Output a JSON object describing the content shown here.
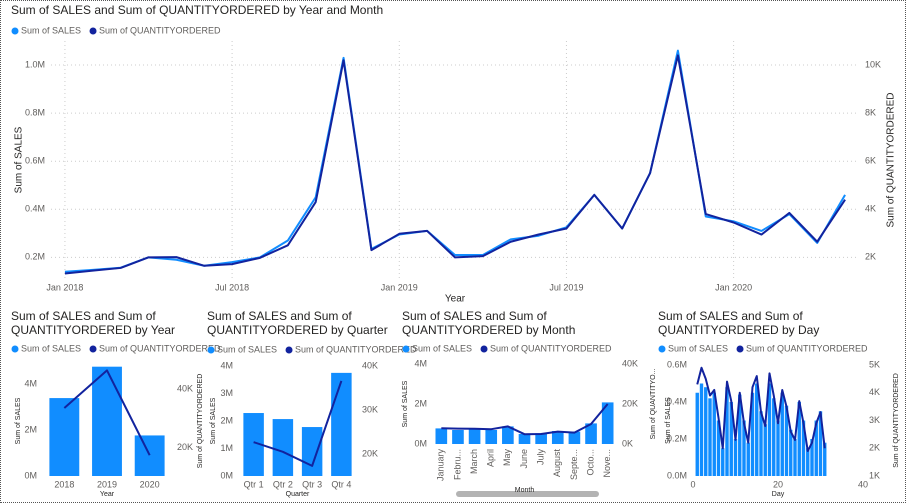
{
  "chart_data": [
    {
      "type": "line",
      "title": "Sum of SALES and Sum of QUANTITYORDERED by Year and Month",
      "x": [
        "2018-01",
        "2018-02",
        "2018-03",
        "2018-04",
        "2018-05",
        "2018-06",
        "2018-07",
        "2018-08",
        "2018-09",
        "2018-10",
        "2018-11",
        "2018-12",
        "2019-01",
        "2019-02",
        "2019-03",
        "2019-04",
        "2019-05",
        "2019-06",
        "2019-07",
        "2019-08",
        "2019-09",
        "2019-10",
        "2019-11",
        "2019-12",
        "2020-01",
        "2020-02",
        "2020-03",
        "2020-04",
        "2020-05"
      ],
      "xticks": [
        {
          "value": "2018-01",
          "label": "Jan 2018"
        },
        {
          "value": "2018-07",
          "label": "Jul 2018"
        },
        {
          "value": "2019-01",
          "label": "Jan 2019"
        },
        {
          "value": "2019-07",
          "label": "Jul 2019"
        },
        {
          "value": "2020-01",
          "label": "Jan 2020"
        }
      ],
      "x_label": "Year",
      "y_label": "Sum of SALES",
      "y2_label": "Sum of QUANTITYORDERED",
      "ylim": [
        110000,
        1100000
      ],
      "yticks": [
        {
          "value": 200000,
          "label": "0.2M"
        },
        {
          "value": 400000,
          "label": "0.4M"
        },
        {
          "value": 600000,
          "label": "0.6M"
        },
        {
          "value": 800000,
          "label": "0.8M"
        },
        {
          "value": 1000000,
          "label": "1.0M"
        }
      ],
      "y2lim": [
        1100,
        11000
      ],
      "y2ticks": [
        {
          "value": 2000,
          "label": "2K"
        },
        {
          "value": 4000,
          "label": "4K"
        },
        {
          "value": 6000,
          "label": "6K"
        },
        {
          "value": 8000,
          "label": "8K"
        },
        {
          "value": 10000,
          "label": "10K"
        }
      ],
      "grid": true,
      "series": [
        {
          "name": "Sum of SALES",
          "color": "#118dff",
          "values": [
            140000,
            148000,
            157000,
            200000,
            190000,
            165000,
            180000,
            200000,
            270000,
            450000,
            1030000,
            235000,
            295000,
            310000,
            210000,
            210000,
            275000,
            290000,
            325000,
            460000,
            320000,
            550000,
            1060000,
            370000,
            350000,
            310000,
            380000,
            260000,
            460000
          ]
        },
        {
          "name": "Sum of QUANTITYORDERED",
          "color": "#12239e",
          "axis": "y2",
          "values": [
            1330,
            1450,
            1560,
            2000,
            2010,
            1650,
            1720,
            1980,
            2500,
            4300,
            10200,
            2300,
            2980,
            3100,
            2000,
            2050,
            2650,
            2950,
            3200,
            4600,
            3200,
            5500,
            10400,
            3800,
            3450,
            2950,
            3850,
            2650,
            4400
          ]
        }
      ]
    },
    {
      "type": "bar",
      "title": "Sum of SALES and Sum of QUANTITYORDERED by Year",
      "categories": [
        "2018",
        "2019",
        "2020"
      ],
      "x_label": "Year",
      "y_label": "Sum of SALES",
      "y2_label": "Sum of QUANTITYORDERED",
      "ylim": [
        0,
        4800000
      ],
      "yticks": [
        {
          "value": 0,
          "label": "0M"
        },
        {
          "value": 2000000,
          "label": "2M"
        },
        {
          "value": 4000000,
          "label": "4M"
        }
      ],
      "y2lim": [
        10400,
        47900
      ],
      "y2ticks": [
        {
          "value": 20000,
          "label": "20K"
        },
        {
          "value": 40000,
          "label": "40K"
        }
      ],
      "series": [
        {
          "name": "Sum of SALES",
          "color": "#118dff",
          "values": [
            3400000,
            4770000,
            1770000
          ]
        },
        {
          "name": "Sum of QUANTITYORDERED",
          "color": "#12239e",
          "axis": "y2",
          "values": [
            33600,
            46400,
            17500
          ]
        }
      ]
    },
    {
      "type": "bar",
      "title": "Sum of SALES and Sum of QUANTITYORDERED by Quarter",
      "categories": [
        "Qtr 1",
        "Qtr 2",
        "Qtr 3",
        "Qtr 4"
      ],
      "x_label": "Quarter",
      "y_label": "Sum of SALES",
      "ylim": [
        0,
        4000000
      ],
      "yticks": [
        {
          "value": 0,
          "label": "0M"
        },
        {
          "value": 1000000,
          "label": "1M"
        },
        {
          "value": 2000000,
          "label": "2M"
        },
        {
          "value": 3000000,
          "label": "3M"
        },
        {
          "value": 4000000,
          "label": "4M"
        }
      ],
      "y2lim": [
        15000,
        40000
      ],
      "y2ticks": [
        {
          "value": 20000,
          "label": "20K"
        },
        {
          "value": 30000,
          "label": "30K"
        },
        {
          "value": 40000,
          "label": "40K"
        }
      ],
      "series": [
        {
          "name": "Sum of SALES",
          "color": "#118dff",
          "values": [
            2290000,
            2070000,
            1780000,
            3750000
          ]
        },
        {
          "name": "Sum of QUANTITYORDERED",
          "color": "#12239e",
          "axis": "y2",
          "values": [
            22700,
            20500,
            17300,
            36600
          ]
        }
      ]
    },
    {
      "type": "bar",
      "title": "Sum of SALES and Sum of QUANTITYORDERED by Month",
      "categories": [
        "January",
        "Febru...",
        "March",
        "April",
        "May",
        "June",
        "July",
        "August",
        "Septe...",
        "Octo...",
        "Nove..."
      ],
      "x_label": "Month",
      "y_label": "Sum of SALES",
      "y2_label": "Sum of QUANTITYO...",
      "ylim": [
        0,
        4000000
      ],
      "yticks": [
        {
          "value": 0,
          "label": "0M"
        },
        {
          "value": 2000000,
          "label": "2M"
        },
        {
          "value": 4000000,
          "label": "4M"
        }
      ],
      "y2lim": [
        0,
        40000
      ],
      "y2ticks": [
        {
          "value": 0,
          "label": "0K"
        },
        {
          "value": 20000,
          "label": "20K"
        },
        {
          "value": 40000,
          "label": "40K"
        }
      ],
      "series": [
        {
          "name": "Sum of SALES",
          "color": "#118dff",
          "values": [
            780000,
            700000,
            770000,
            700000,
            880000,
            500000,
            540000,
            650000,
            620000,
            1030000,
            2080000
          ]
        },
        {
          "name": "Sum of QUANTITYORDERED",
          "color": "#12239e",
          "axis": "y2",
          "values": [
            7900,
            7700,
            7600,
            7400,
            8800,
            4900,
            5000,
            6200,
            5700,
            10000,
            20000
          ]
        }
      ]
    },
    {
      "type": "bar",
      "title": "Sum of SALES and Sum of QUANTITYORDERED by Day",
      "x": [
        1,
        2,
        3,
        4,
        5,
        6,
        7,
        8,
        9,
        10,
        11,
        12,
        13,
        14,
        15,
        16,
        17,
        18,
        19,
        20,
        21,
        22,
        23,
        24,
        25,
        26,
        27,
        28,
        29,
        30,
        31
      ],
      "xlim": [
        0,
        40
      ],
      "xticks": [
        0,
        20,
        40
      ],
      "x_label": "Day",
      "y_label": "Sum of SALES",
      "y2_label": "Sum of QUANTITYORDERED",
      "ylim": [
        0,
        600000
      ],
      "yticks": [
        {
          "value": 0,
          "label": "0.0M"
        },
        {
          "value": 200000,
          "label": "0.2M"
        },
        {
          "value": 400000,
          "label": "0.4M"
        },
        {
          "value": 600000,
          "label": "0.6M"
        }
      ],
      "y2lim": [
        1000,
        5000
      ],
      "y2ticks": [
        {
          "value": 1000,
          "label": "1K"
        },
        {
          "value": 2000,
          "label": "2K"
        },
        {
          "value": 3000,
          "label": "3K"
        },
        {
          "value": 4000,
          "label": "4K"
        },
        {
          "value": 5000,
          "label": "5K"
        }
      ],
      "series": [
        {
          "name": "Sum of SALES",
          "color": "#118dff",
          "values": [
            450000,
            500000,
            480000,
            420000,
            450000,
            300000,
            150000,
            480000,
            400000,
            200000,
            440000,
            300000,
            180000,
            450000,
            500000,
            350000,
            280000,
            500000,
            420000,
            300000,
            450000,
            380000,
            250000,
            200000,
            400000,
            300000,
            150000,
            200000,
            300000,
            350000,
            180000
          ]
        },
        {
          "name": "Sum of QUANTITYORDERED",
          "color": "#12239e",
          "axis": "y2",
          "values": [
            4300,
            4900,
            4500,
            3900,
            4100,
            3100,
            2000,
            4400,
            3700,
            2300,
            4000,
            2900,
            2200,
            4200,
            4600,
            3300,
            2800,
            4700,
            3900,
            2900,
            4100,
            3500,
            2600,
            2300,
            3700,
            2900,
            1900,
            2200,
            2900,
            3300,
            2000
          ]
        }
      ]
    }
  ]
}
